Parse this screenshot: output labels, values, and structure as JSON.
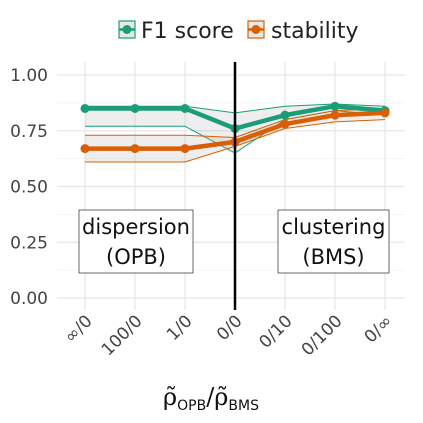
{
  "chart_data": {
    "type": "line",
    "categories": [
      "∞/0",
      "100/0",
      "1/0",
      "0/0",
      "0/10",
      "0/100",
      "0/∞"
    ],
    "ylim": [
      0,
      1.05
    ],
    "yticks": [
      "0.00",
      "0.25",
      "0.50",
      "0.75",
      "1.00"
    ],
    "ytick_values": [
      0,
      0.25,
      0.5,
      0.75,
      1.0
    ],
    "grid": true,
    "legend_position": "top",
    "vertical_divider_at": "0/0",
    "series": [
      {
        "name": "F1 score",
        "color": "#1b9e77",
        "values": [
          0.85,
          0.85,
          0.85,
          0.76,
          0.82,
          0.86,
          0.84
        ],
        "upper": [
          0.86,
          0.86,
          0.86,
          0.83,
          0.86,
          0.87,
          0.86
        ],
        "lower": [
          0.77,
          0.77,
          0.77,
          0.65,
          0.8,
          0.84,
          0.82
        ]
      },
      {
        "name": "stability",
        "color": "#d95f02",
        "values": [
          0.67,
          0.67,
          0.67,
          0.7,
          0.78,
          0.82,
          0.83
        ],
        "upper": [
          0.73,
          0.73,
          0.73,
          0.72,
          0.8,
          0.84,
          0.85
        ],
        "lower": [
          0.61,
          0.61,
          0.61,
          0.68,
          0.76,
          0.79,
          0.8
        ]
      }
    ],
    "annotations": [
      {
        "line1": "dispersion",
        "line2": "(OPB)"
      },
      {
        "line1": "clustering",
        "line2": "(BMS)"
      }
    ],
    "xlabel": {
      "left_symbol": "ρ̃",
      "left_sub": "OPB",
      "separator": "/",
      "right_symbol": "ρ̃",
      "right_sub": "BMS"
    }
  }
}
